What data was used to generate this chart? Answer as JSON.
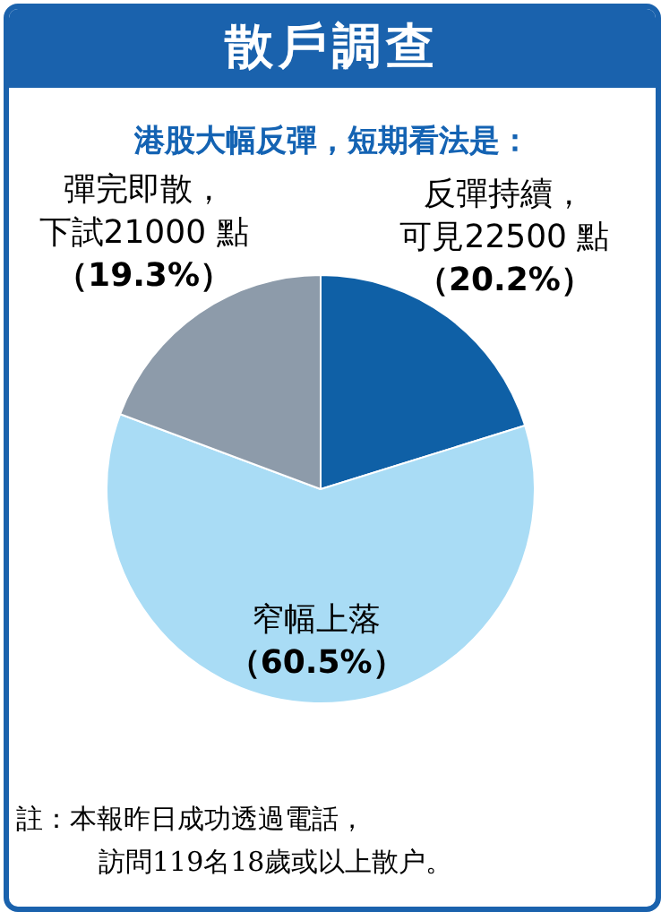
{
  "chart_data": {
    "type": "pie",
    "title": "散戶調查",
    "subtitle": "港股大幅反彈，短期看法是：",
    "categories": [
      "反彈持續，可見22500 點",
      "窄幅上落",
      "彈完即散，下試21000 點"
    ],
    "values": [
      20.2,
      60.5,
      19.3
    ],
    "colors": [
      "#0f60a6",
      "#a9dcf5",
      "#8d9baa"
    ],
    "value_labels": [
      "（20.2%）",
      "（60.5%）",
      "（19.3%）"
    ],
    "legend": false,
    "annotations": [
      "註：本報昨日成功透過電話，訪問119名18歲或以上散户。"
    ]
  }
}
